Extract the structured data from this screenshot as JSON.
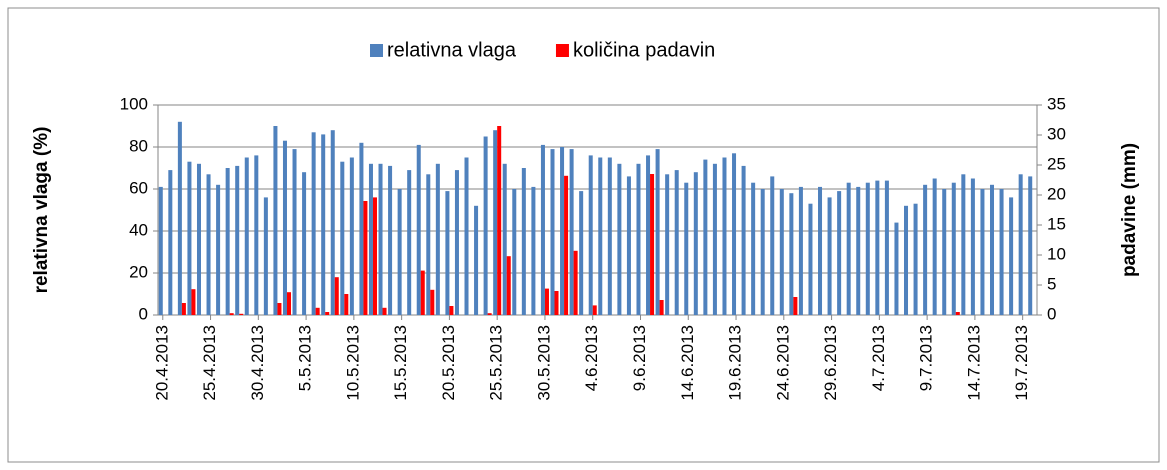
{
  "chart_data": {
    "type": "bar",
    "legend_position": "top",
    "ylabel": "relativna vlaga (%)",
    "y2label": "padavine (mm)",
    "ylim": [
      0,
      100
    ],
    "yticks": [
      0,
      20,
      40,
      60,
      80,
      100
    ],
    "y2lim": [
      0,
      35
    ],
    "y2ticks": [
      0,
      5,
      10,
      15,
      20,
      25,
      30,
      35
    ],
    "grid": true,
    "categories": [
      "20.4.2013",
      null,
      null,
      null,
      null,
      "25.4.2013",
      null,
      null,
      null,
      null,
      "30.4.2013",
      null,
      null,
      null,
      null,
      "5.5.2013",
      null,
      null,
      null,
      null,
      "10.5.2013",
      null,
      null,
      null,
      null,
      "15.5.2013",
      null,
      null,
      null,
      null,
      "20.5.2013",
      null,
      null,
      null,
      null,
      "25.5.2013",
      null,
      null,
      null,
      null,
      "30.5.2013",
      null,
      null,
      null,
      null,
      "4.6.2013",
      null,
      null,
      null,
      null,
      "9.6.2013",
      null,
      null,
      null,
      null,
      "14.6.2013",
      null,
      null,
      null,
      null,
      "19.6.2013",
      null,
      null,
      null,
      null,
      "24.6.2013",
      null,
      null,
      null,
      null,
      "29.6.2013",
      null,
      null,
      null,
      null,
      "4.7.2013",
      null,
      null,
      null,
      null,
      "9.7.2013",
      null,
      null,
      null,
      null,
      "14.7.2013",
      null,
      null,
      null,
      null,
      "19.7.2013",
      null
    ],
    "series": [
      {
        "name": "relativna vlaga",
        "color": "#4f81bd",
        "axis": "y",
        "values": [
          61,
          69,
          92,
          73,
          72,
          67,
          62,
          70,
          71,
          75,
          76,
          56,
          90,
          83,
          79,
          68,
          87,
          86,
          88,
          73,
          75,
          82,
          72,
          72,
          71,
          60,
          69,
          81,
          67,
          72,
          59,
          69,
          75,
          52,
          85,
          88,
          72,
          60,
          70,
          61,
          81,
          79,
          80,
          79,
          59,
          76,
          75,
          75,
          72,
          66,
          72,
          76,
          79,
          67,
          69,
          63,
          68,
          74,
          72,
          75,
          77,
          71,
          63,
          60,
          66,
          60,
          58,
          61,
          53,
          61,
          56,
          59,
          63,
          61,
          63,
          64,
          64,
          44,
          52,
          53,
          62,
          65,
          60,
          63,
          67,
          65,
          60,
          62,
          60,
          56,
          67,
          66
        ]
      },
      {
        "name": "količina padavin",
        "color": "#ff0000",
        "axis": "y2",
        "values": [
          0,
          0,
          2,
          4.3,
          0,
          0,
          0,
          0.3,
          0.2,
          0,
          0,
          0,
          2,
          3.8,
          0,
          0,
          1.2,
          0.5,
          6.3,
          3.5,
          0,
          19,
          19.6,
          1.2,
          0,
          0,
          0,
          7.4,
          4.2,
          0,
          1.5,
          0,
          0,
          0,
          0.3,
          31.5,
          9.8,
          0,
          0,
          0,
          4.4,
          4,
          23.2,
          10.7,
          0,
          1.6,
          0,
          0,
          0,
          0,
          0,
          23.5,
          2.5,
          0,
          0,
          0,
          0,
          0,
          0,
          0,
          0,
          0,
          0,
          0,
          0,
          0,
          3,
          0,
          0,
          0,
          0,
          0,
          0,
          0,
          0,
          0,
          0,
          0,
          0,
          0,
          0,
          0,
          0,
          0.5,
          0,
          0,
          0,
          0,
          0,
          0,
          0,
          0
        ]
      }
    ]
  }
}
